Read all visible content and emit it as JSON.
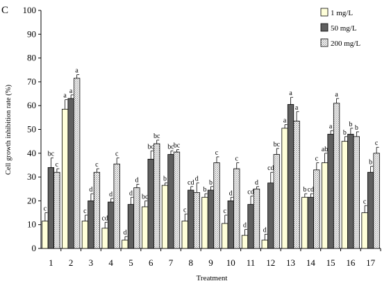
{
  "panel_label": "C",
  "chart_data": {
    "type": "bar",
    "xlabel": "Treatment",
    "ylabel": "Cell growth inhibition rate (%)",
    "ylim": [
      0,
      100
    ],
    "yticks": [
      0,
      10,
      20,
      30,
      40,
      50,
      60,
      70,
      80,
      90,
      100
    ],
    "categories": [
      "1",
      "2",
      "3",
      "4",
      "5",
      "6",
      "7",
      "8",
      "9",
      "10",
      "11",
      "12",
      "13",
      "14",
      "15",
      "16",
      "17"
    ],
    "legend_position": "top-right",
    "series": [
      {
        "name": "1 mg/L",
        "fill": "#ffffd9",
        "pattern": "solid",
        "values": [
          11.5,
          58.5,
          11.5,
          8.5,
          3.5,
          17.5,
          26.5,
          11.5,
          21.5,
          10.5,
          5.5,
          3.5,
          50.5,
          21.5,
          36,
          45,
          15
        ],
        "errors": [
          3.5,
          4,
          2.5,
          2.5,
          1.5,
          2.5,
          1,
          3,
          1.5,
          3.5,
          2.5,
          2.5,
          1.5,
          1.5,
          4,
          2,
          3
        ],
        "letters": [
          "c",
          "a",
          "c",
          "cd",
          "d",
          "bc",
          "b",
          "c",
          "b",
          "c",
          "d",
          "d",
          "a",
          "b",
          "ab",
          "b",
          "c"
        ]
      },
      {
        "name": "50 mg/L",
        "fill": "#606060",
        "pattern": "solid",
        "values": [
          34,
          63,
          20,
          19.5,
          18.5,
          37.5,
          39.5,
          24.5,
          24.5,
          20,
          18.5,
          27.5,
          60.5,
          21.5,
          48,
          48,
          32
        ],
        "errors": [
          4,
          1.5,
          3,
          1.5,
          3,
          3.5,
          1.5,
          1.5,
          1.5,
          1.5,
          3.5,
          4.5,
          3,
          1.5,
          1.5,
          2.5,
          2.5
        ],
        "letters": [
          "bc",
          "a",
          "d",
          "d",
          "d",
          "bc",
          "bc",
          "cd",
          "b",
          "d",
          "cd",
          "cd",
          "a",
          "cd",
          "a",
          "b",
          "b"
        ]
      },
      {
        "name": "200 mg/L",
        "fill": "#ffffff",
        "pattern": "dots",
        "values": [
          32,
          71.5,
          32,
          35.5,
          25.5,
          44,
          40.5,
          23.5,
          36,
          33.5,
          25,
          39.5,
          53.5,
          33,
          61,
          47,
          40
        ],
        "errors": [
          1.5,
          1.5,
          1.5,
          2.5,
          1.5,
          1.5,
          1,
          4,
          2.5,
          2.5,
          1,
          2.5,
          4,
          3,
          2,
          2,
          2.5
        ],
        "letters": [
          "c",
          "a",
          "c",
          "c",
          "d",
          "bc",
          "bc",
          "d",
          "c",
          "c",
          "d",
          "bc",
          "a",
          "c",
          "a",
          "b",
          "c"
        ]
      }
    ]
  }
}
